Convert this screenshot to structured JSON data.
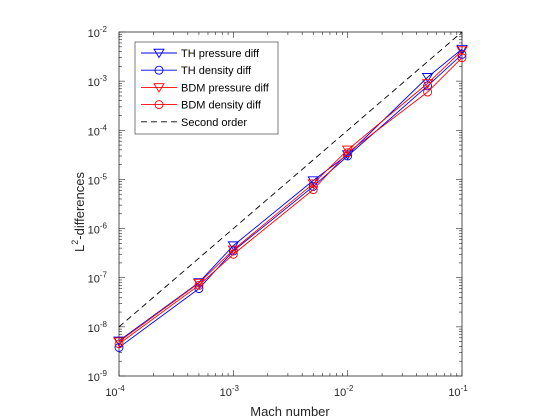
{
  "chart_data": {
    "type": "line",
    "xscale": "log",
    "yscale": "log",
    "xlim": [
      0.0001,
      0.1
    ],
    "ylim": [
      1e-09,
      0.01
    ],
    "xlabel": "Mach number",
    "ylabel": "L2-differences",
    "ylabel_parts": {
      "base": "L",
      "sup": "2",
      "rest": "-differences"
    },
    "grid": false,
    "legend_position": "top-left",
    "x": [
      0.0001,
      0.0005,
      0.001,
      0.005,
      0.01,
      0.05,
      0.1
    ],
    "xticks": [
      {
        "value": 0.0001,
        "mantissa": "10",
        "exp": "-4"
      },
      {
        "value": 0.001,
        "mantissa": "10",
        "exp": "-3"
      },
      {
        "value": 0.01,
        "mantissa": "10",
        "exp": "-2"
      },
      {
        "value": 0.1,
        "mantissa": "10",
        "exp": "-1"
      }
    ],
    "yticks": [
      {
        "value": 1e-09,
        "mantissa": "10",
        "exp": "-9"
      },
      {
        "value": 1e-08,
        "mantissa": "10",
        "exp": "-8"
      },
      {
        "value": 1e-07,
        "mantissa": "10",
        "exp": "-7"
      },
      {
        "value": 1e-06,
        "mantissa": "10",
        "exp": "-6"
      },
      {
        "value": 1e-05,
        "mantissa": "10",
        "exp": "-5"
      },
      {
        "value": 0.0001,
        "mantissa": "10",
        "exp": "-4"
      },
      {
        "value": 0.001,
        "mantissa": "10",
        "exp": "-3"
      },
      {
        "value": 0.01,
        "mantissa": "10",
        "exp": "-2"
      }
    ],
    "series": [
      {
        "name": "TH pressure diff",
        "color": "#0000ff",
        "marker": "triangle-down",
        "line": "solid",
        "values": [
          5.2e-09,
          8e-08,
          4.5e-07,
          9.5e-06,
          3.2e-05,
          0.0012,
          0.0045
        ]
      },
      {
        "name": "TH density diff",
        "color": "#0000ff",
        "marker": "circle",
        "line": "solid",
        "values": [
          3.8e-09,
          6e-08,
          3.5e-07,
          7.2e-06,
          3e-05,
          0.0008,
          0.0035
        ]
      },
      {
        "name": "BDM pressure diff",
        "color": "#ff0000",
        "marker": "triangle-down",
        "line": "solid",
        "values": [
          5e-09,
          7.8e-08,
          3.7e-07,
          8.2e-06,
          4e-05,
          0.0009,
          0.0042
        ]
      },
      {
        "name": "BDM density diff",
        "color": "#ff0000",
        "marker": "circle",
        "line": "solid",
        "values": [
          4.5e-09,
          7e-08,
          3e-07,
          6.2e-06,
          3.5e-05,
          0.0006,
          0.003
        ]
      },
      {
        "name": "Second order",
        "color": "#000000",
        "marker": "none",
        "line": "dashed",
        "values": [
          1e-08,
          2.5e-07,
          1e-06,
          2.5e-05,
          0.0001,
          0.0025,
          0.01
        ]
      }
    ]
  }
}
